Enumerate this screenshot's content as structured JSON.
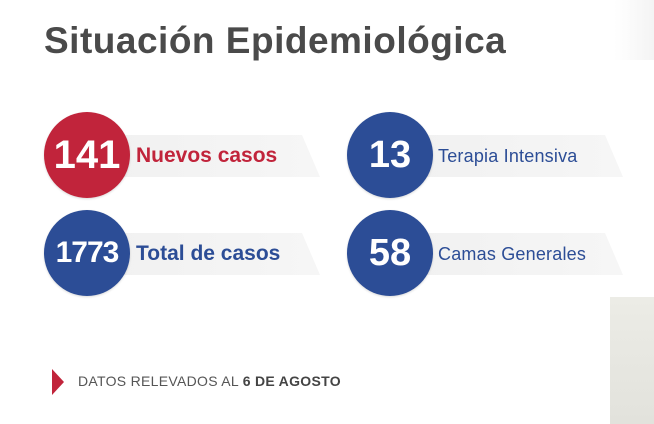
{
  "title": "Situación Epidemiológica",
  "stats": {
    "new_cases": {
      "value": "141",
      "label": "Nuevos casos",
      "color": "#c1243b"
    },
    "total_cases": {
      "value": "1773",
      "label": "Total de casos",
      "color": "#2c4d96"
    },
    "intensive_care": {
      "value": "13",
      "label": "Terapia Intensiva",
      "color": "#2c4d96"
    },
    "general_beds": {
      "value": "58",
      "label": "Camas Generales",
      "color": "#2c4d96"
    }
  },
  "footer": {
    "prefix": "DATOS RELEVADOS AL ",
    "date": "6 DE AGOSTO"
  }
}
